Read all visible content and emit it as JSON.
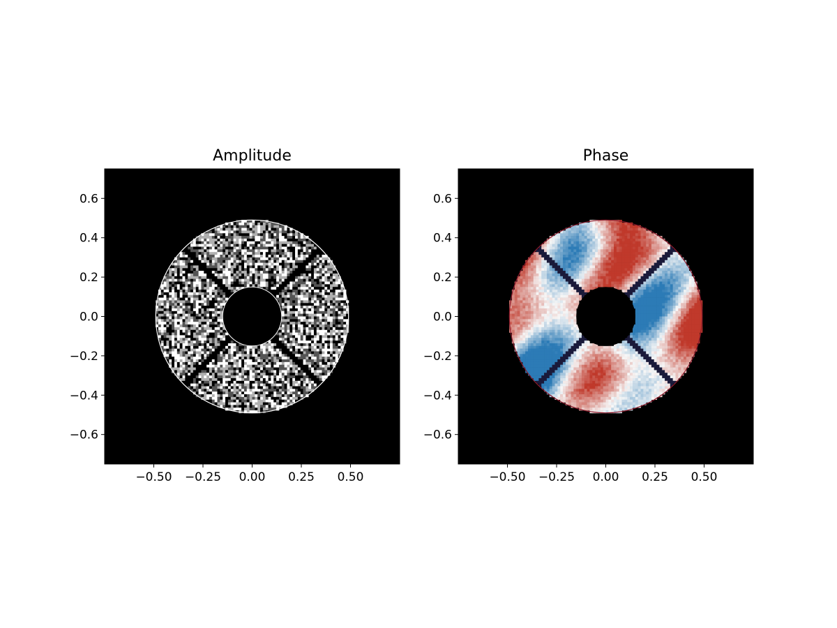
{
  "chart_data": [
    {
      "type": "heatmap",
      "title": "Amplitude",
      "xlabel": "",
      "ylabel": "",
      "xlim": [
        -0.75,
        0.75
      ],
      "ylim": [
        -0.75,
        0.75
      ],
      "x_ticks": [
        -0.5,
        -0.25,
        0.0,
        0.25,
        0.5
      ],
      "x_tick_labels": [
        "−0.50",
        "−0.25",
        "0.00",
        "0.25",
        "0.50"
      ],
      "y_ticks": [
        0.6,
        0.4,
        0.2,
        0.0,
        -0.2,
        -0.4,
        -0.6
      ],
      "y_tick_labels": [
        "0.6",
        "0.4",
        "0.2",
        "0.0",
        "−0.2",
        "−0.4",
        "−0.6"
      ],
      "colormap": "gray",
      "background": "#000000",
      "aperture": {
        "outer_radius": 0.49,
        "inner_radius": 0.15,
        "spider_angles_deg": [
          45,
          135,
          225,
          315
        ]
      },
      "grid": false
    },
    {
      "type": "heatmap",
      "title": "Phase",
      "xlabel": "",
      "ylabel": "",
      "xlim": [
        -0.75,
        0.75
      ],
      "ylim": [
        -0.75,
        0.75
      ],
      "x_ticks": [
        -0.5,
        -0.25,
        0.0,
        0.25,
        0.5
      ],
      "x_tick_labels": [
        "−0.50",
        "−0.25",
        "0.00",
        "0.25",
        "0.50"
      ],
      "y_ticks": [
        0.6,
        0.4,
        0.2,
        0.0,
        -0.2,
        -0.4,
        -0.6
      ],
      "y_tick_labels": [
        "0.6",
        "0.4",
        "0.2",
        "0.0",
        "−0.2",
        "−0.4",
        "−0.6"
      ],
      "colormap": "RdBu_r",
      "background": "#000000",
      "aperture": {
        "outer_radius": 0.49,
        "inner_radius": 0.15,
        "spider_angles_deg": [
          45,
          135,
          225,
          315
        ]
      },
      "grid": false
    }
  ],
  "colors": {
    "background": "#000000",
    "amplitude_light": "#ffffff",
    "phase_red": "#c0392b",
    "phase_blue": "#2c7bb6",
    "phase_mid": "#f7f7f7",
    "spider_dark": "#1a1a3a"
  }
}
